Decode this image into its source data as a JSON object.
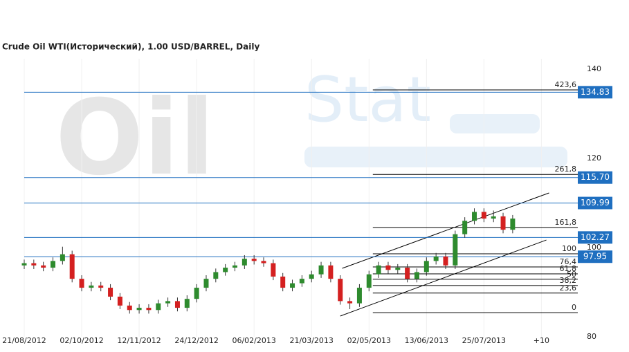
{
  "chart_data": {
    "type": "candlestick",
    "title": "Crude Oil WTI(Исторический), 1.00 USD/BARREL, Daily",
    "watermark": [
      "Oil",
      "Stat"
    ],
    "xlim": [
      0,
      289
    ],
    "xticks": [
      {
        "value": 0,
        "label": "21/08/2012"
      },
      {
        "value": 30,
        "label": "02/10/2012"
      },
      {
        "value": 60,
        "label": "12/11/2012"
      },
      {
        "value": 90,
        "label": "24/12/2012"
      },
      {
        "value": 120,
        "label": "06/02/2013"
      },
      {
        "value": 150,
        "label": "21/03/2013"
      },
      {
        "value": 180,
        "label": "02/05/2013"
      },
      {
        "value": 210,
        "label": "13/06/2013"
      },
      {
        "value": 240,
        "label": "25/07/2013"
      },
      {
        "value": 270,
        "label": "+10"
      }
    ],
    "ylim": [
      80,
      140
    ],
    "yticks": [
      80,
      100,
      120,
      140
    ],
    "up_color": "#2e8b2e",
    "down_color": "#d42020",
    "x": [
      0,
      5,
      10,
      15,
      20,
      25,
      30,
      35,
      40,
      45,
      50,
      55,
      60,
      65,
      70,
      75,
      80,
      85,
      90,
      95,
      100,
      105,
      110,
      115,
      120,
      125,
      130,
      135,
      140,
      145,
      150,
      155,
      160,
      165,
      170,
      175,
      180,
      185,
      190,
      195,
      200,
      205,
      210,
      215,
      220,
      225,
      230,
      235,
      240,
      245,
      250,
      255
    ],
    "open": [
      96,
      96.5,
      96,
      95.5,
      97,
      98.5,
      93,
      91,
      91.5,
      91,
      89,
      87,
      86,
      86.5,
      86,
      87.5,
      88,
      86.5,
      88.5,
      91,
      93,
      94.5,
      95.5,
      96,
      97.5,
      97,
      96.5,
      93.5,
      91,
      92,
      93,
      94,
      96,
      93,
      88,
      87.5,
      91,
      94,
      96,
      95,
      95.5,
      93,
      94.5,
      97,
      98,
      96,
      103,
      106,
      108,
      106.5,
      107,
      104
    ],
    "high": [
      97.3,
      97.3,
      96.8,
      97.8,
      100.2,
      99.3,
      93.8,
      92.3,
      92.3,
      91.8,
      89.8,
      87.8,
      87.3,
      87.3,
      88.3,
      88.8,
      88.8,
      89.3,
      91.8,
      93.8,
      95.3,
      96.3,
      96.8,
      98.3,
      98.3,
      97.8,
      97.3,
      94.3,
      92.8,
      93.8,
      94.8,
      96.8,
      96.8,
      93.8,
      88.8,
      91.8,
      94.8,
      96.8,
      96.8,
      96.3,
      96.3,
      95.3,
      97.8,
      98.8,
      98.8,
      103.8,
      106.8,
      108.8,
      108.8,
      108.3,
      107.8,
      107.3
    ],
    "low": [
      95.2,
      95.2,
      94.7,
      94.7,
      96.2,
      92.2,
      90.2,
      90.2,
      90.2,
      88.2,
      86.2,
      85.2,
      85.2,
      85.2,
      85.2,
      86.7,
      85.7,
      85.7,
      87.7,
      90.2,
      92.2,
      93.7,
      94.7,
      95.2,
      96.2,
      95.7,
      92.7,
      90.2,
      90.2,
      91.2,
      92.2,
      93.2,
      92.2,
      87.2,
      86.2,
      86.7,
      90.2,
      93.2,
      94.2,
      94.2,
      92.2,
      92.2,
      93.7,
      96.2,
      95.2,
      95.2,
      102.2,
      105.2,
      105.7,
      105.7,
      103.2,
      103.2
    ],
    "close": [
      96.5,
      96,
      95.5,
      97,
      98.5,
      93,
      91,
      91.5,
      91,
      89,
      87,
      86,
      86.5,
      86,
      87.5,
      88,
      86.5,
      88.5,
      91,
      93,
      94.5,
      95.5,
      96,
      97.5,
      97,
      96.5,
      93.5,
      91,
      92,
      93,
      94,
      96,
      93,
      88,
      87.5,
      91,
      94,
      96,
      95,
      95.5,
      93,
      94.5,
      97,
      98,
      96,
      103,
      106,
      108,
      106.5,
      107,
      104,
      106.5
    ],
    "levels_color": "#1f6fc0",
    "levels": [
      {
        "value": 134.83,
        "label": "134.83"
      },
      {
        "value": 115.7,
        "label": "115.70"
      },
      {
        "value": 109.99,
        "label": "109.99"
      },
      {
        "value": 102.27,
        "label": "102.27"
      },
      {
        "value": 97.95,
        "label": "97.95"
      }
    ],
    "fib_start": 182,
    "fib_levels": [
      {
        "value": 135.35,
        "label": "423,6"
      },
      {
        "value": 116.4,
        "label": "261,8"
      },
      {
        "value": 104.5,
        "label": "161,8"
      },
      {
        "value": 98.6,
        "label": "100"
      },
      {
        "value": 95.66,
        "label": "76,4"
      },
      {
        "value": 94.1,
        "label": "61,8"
      },
      {
        "value": 92.9,
        "label": "50"
      },
      {
        "value": 91.5,
        "label": "38,2"
      },
      {
        "value": 89.8,
        "label": "23,6"
      },
      {
        "value": 85.4,
        "label": "0"
      }
    ],
    "channel": [
      {
        "x": [
          166,
          274
        ],
        "y": [
          95.35,
          112.25
        ]
      },
      {
        "x": [
          165,
          272.6
        ],
        "y": [
          84.65,
          101.7
        ]
      }
    ]
  }
}
